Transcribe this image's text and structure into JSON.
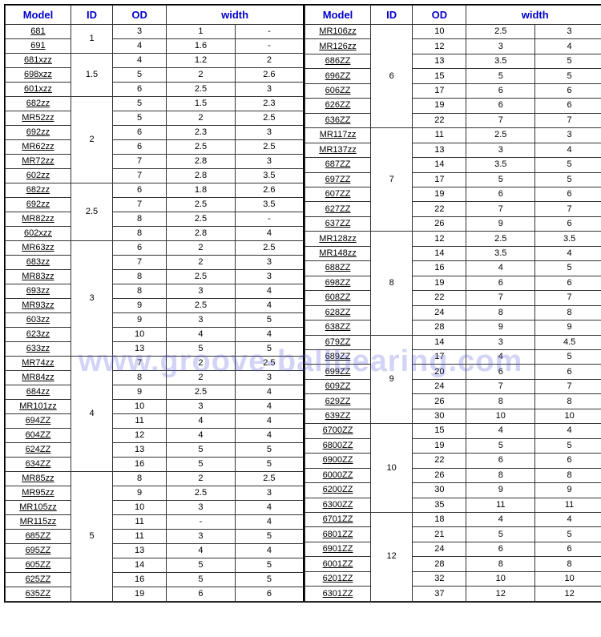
{
  "headers": {
    "model": "Model",
    "id": "ID",
    "od": "OD",
    "width": "width"
  },
  "watermark": "www.groove-ballbearing.com",
  "left": [
    {
      "id": "1",
      "rows": [
        {
          "model": "681",
          "od": "3",
          "w1": "1",
          "w2": "-"
        },
        {
          "model": "691",
          "od": "4",
          "w1": "1.6",
          "w2": "-"
        }
      ]
    },
    {
      "id": "1.5",
      "rows": [
        {
          "model": "681xzz",
          "od": "4",
          "w1": "1.2",
          "w2": "2"
        },
        {
          "model": "698xzz",
          "od": "5",
          "w1": "2",
          "w2": "2.6"
        },
        {
          "model": "601xzz",
          "od": "6",
          "w1": "2.5",
          "w2": "3"
        }
      ]
    },
    {
      "id": "2",
      "rows": [
        {
          "model": "682zz",
          "od": "5",
          "w1": "1.5",
          "w2": "2.3"
        },
        {
          "model": "MR52zz",
          "od": "5",
          "w1": "2",
          "w2": "2.5"
        },
        {
          "model": "692zz",
          "od": "6",
          "w1": "2.3",
          "w2": "3"
        },
        {
          "model": "MR62zz",
          "od": "6",
          "w1": "2.5",
          "w2": "2.5"
        },
        {
          "model": "MR72zz",
          "od": "7",
          "w1": "2.8",
          "w2": "3"
        },
        {
          "model": "602zz",
          "od": "7",
          "w1": "2.8",
          "w2": "3.5"
        }
      ]
    },
    {
      "id": "2.5",
      "rows": [
        {
          "model": "682zz",
          "od": "6",
          "w1": "1.8",
          "w2": "2.6"
        },
        {
          "model": "692zz",
          "od": "7",
          "w1": "2.5",
          "w2": "3.5"
        },
        {
          "model": "MR82zz",
          "od": "8",
          "w1": "2.5",
          "w2": "-"
        },
        {
          "model": "602xzz",
          "od": "8",
          "w1": "2.8",
          "w2": "4"
        }
      ]
    },
    {
      "id": "3",
      "rows": [
        {
          "model": "MR63zz",
          "od": "6",
          "w1": "2",
          "w2": "2.5"
        },
        {
          "model": "683zz",
          "od": "7",
          "w1": "2",
          "w2": "3"
        },
        {
          "model": "MR83zz",
          "od": "8",
          "w1": "2.5",
          "w2": "3"
        },
        {
          "model": "693zz",
          "od": "8",
          "w1": "3",
          "w2": "4"
        },
        {
          "model": "MR93zz",
          "od": "9",
          "w1": "2.5",
          "w2": "4"
        },
        {
          "model": "603zz",
          "od": "9",
          "w1": "3",
          "w2": "5"
        },
        {
          "model": "623zz",
          "od": "10",
          "w1": "4",
          "w2": "4"
        },
        {
          "model": "633zz",
          "od": "13",
          "w1": "5",
          "w2": "5"
        }
      ]
    },
    {
      "id": "4",
      "rows": [
        {
          "model": "MR74zz",
          "od": "7",
          "w1": "2",
          "w2": "2.5"
        },
        {
          "model": "MR84zz",
          "od": "8",
          "w1": "2",
          "w2": "3"
        },
        {
          "model": "684zz",
          "od": "9",
          "w1": "2.5",
          "w2": "4"
        },
        {
          "model": "MR101zz",
          "od": "10",
          "w1": "3",
          "w2": "4"
        },
        {
          "model": "694ZZ",
          "od": "11",
          "w1": "4",
          "w2": "4"
        },
        {
          "model": "604ZZ",
          "od": "12",
          "w1": "4",
          "w2": "4"
        },
        {
          "model": "624ZZ",
          "od": "13",
          "w1": "5",
          "w2": "5"
        },
        {
          "model": "634ZZ",
          "od": "16",
          "w1": "5",
          "w2": "5"
        }
      ]
    },
    {
      "id": "5",
      "rows": [
        {
          "model": "MR85zz",
          "od": "8",
          "w1": "2",
          "w2": "2.5"
        },
        {
          "model": "MR95zz",
          "od": "9",
          "w1": "2.5",
          "w2": "3"
        },
        {
          "model": "MR105zz",
          "od": "10",
          "w1": "3",
          "w2": "4"
        },
        {
          "model": "MR115zz",
          "od": "11",
          "w1": "-",
          "w2": "4"
        },
        {
          "model": "685ZZ",
          "od": "11",
          "w1": "3",
          "w2": "5"
        },
        {
          "model": "695ZZ",
          "od": "13",
          "w1": "4",
          "w2": "4"
        },
        {
          "model": "605ZZ",
          "od": "14",
          "w1": "5",
          "w2": "5"
        },
        {
          "model": "625ZZ",
          "od": "16",
          "w1": "5",
          "w2": "5"
        },
        {
          "model": "635ZZ",
          "od": "19",
          "w1": "6",
          "w2": "6"
        }
      ]
    }
  ],
  "right": [
    {
      "id": "6",
      "rows": [
        {
          "model": "MR106zz",
          "od": "10",
          "w1": "2.5",
          "w2": "3"
        },
        {
          "model": "MR126zz",
          "od": "12",
          "w1": "3",
          "w2": "4"
        },
        {
          "model": "686ZZ",
          "od": "13",
          "w1": "3.5",
          "w2": "5"
        },
        {
          "model": "696ZZ",
          "od": "15",
          "w1": "5",
          "w2": "5"
        },
        {
          "model": "606ZZ",
          "od": "17",
          "w1": "6",
          "w2": "6"
        },
        {
          "model": "626ZZ",
          "od": "19",
          "w1": "6",
          "w2": "6"
        },
        {
          "model": "636ZZ",
          "od": "22",
          "w1": "7",
          "w2": "7"
        }
      ]
    },
    {
      "id": "7",
      "rows": [
        {
          "model": "MR117zz",
          "od": "11",
          "w1": "2.5",
          "w2": "3"
        },
        {
          "model": "MR137zz",
          "od": "13",
          "w1": "3",
          "w2": "4"
        },
        {
          "model": "687ZZ",
          "od": "14",
          "w1": "3.5",
          "w2": "5"
        },
        {
          "model": "697ZZ",
          "od": "17",
          "w1": "5",
          "w2": "5"
        },
        {
          "model": "607ZZ",
          "od": "19",
          "w1": "6",
          "w2": "6"
        },
        {
          "model": "627ZZ",
          "od": "22",
          "w1": "7",
          "w2": "7"
        },
        {
          "model": "637ZZ",
          "od": "26",
          "w1": "9",
          "w2": "6"
        }
      ]
    },
    {
      "id": "8",
      "rows": [
        {
          "model": "MR128zz",
          "od": "12",
          "w1": "2.5",
          "w2": "3.5"
        },
        {
          "model": "MR148zz",
          "od": "14",
          "w1": "3.5",
          "w2": "4"
        },
        {
          "model": "688ZZ",
          "od": "16",
          "w1": "4",
          "w2": "5"
        },
        {
          "model": "698ZZ",
          "od": "19",
          "w1": "6",
          "w2": "6"
        },
        {
          "model": "608ZZ",
          "od": "22",
          "w1": "7",
          "w2": "7"
        },
        {
          "model": "628ZZ",
          "od": "24",
          "w1": "8",
          "w2": "8"
        },
        {
          "model": "638ZZ",
          "od": "28",
          "w1": "9",
          "w2": "9"
        }
      ]
    },
    {
      "id": "9",
      "rows": [
        {
          "model": "679ZZ",
          "od": "14",
          "w1": "3",
          "w2": "4.5"
        },
        {
          "model": "689ZZ",
          "od": "17",
          "w1": "4",
          "w2": "5"
        },
        {
          "model": "699ZZ",
          "od": "20",
          "w1": "6",
          "w2": "6"
        },
        {
          "model": "609ZZ",
          "od": "24",
          "w1": "7",
          "w2": "7"
        },
        {
          "model": "629ZZ",
          "od": "26",
          "w1": "8",
          "w2": "8"
        },
        {
          "model": "639ZZ",
          "od": "30",
          "w1": "10",
          "w2": "10"
        }
      ]
    },
    {
      "id": "10",
      "rows": [
        {
          "model": "6700ZZ",
          "od": "15",
          "w1": "4",
          "w2": "4"
        },
        {
          "model": "6800ZZ",
          "od": "19",
          "w1": "5",
          "w2": "5"
        },
        {
          "model": "6900ZZ",
          "od": "22",
          "w1": "6",
          "w2": "6"
        },
        {
          "model": "6000ZZ",
          "od": "26",
          "w1": "8",
          "w2": "8"
        },
        {
          "model": "6200ZZ",
          "od": "30",
          "w1": "9",
          "w2": "9"
        },
        {
          "model": "6300ZZ",
          "od": "35",
          "w1": "11",
          "w2": "11"
        }
      ]
    },
    {
      "id": "12",
      "rows": [
        {
          "model": "6701ZZ",
          "od": "18",
          "w1": "4",
          "w2": "4"
        },
        {
          "model": "6801ZZ",
          "od": "21",
          "w1": "5",
          "w2": "5"
        },
        {
          "model": "6901ZZ",
          "od": "24",
          "w1": "6",
          "w2": "6"
        },
        {
          "model": "6001ZZ",
          "od": "28",
          "w1": "8",
          "w2": "8"
        },
        {
          "model": "6201ZZ",
          "od": "32",
          "w1": "10",
          "w2": "10"
        },
        {
          "model": "6301ZZ",
          "od": "37",
          "w1": "12",
          "w2": "12"
        }
      ]
    }
  ]
}
